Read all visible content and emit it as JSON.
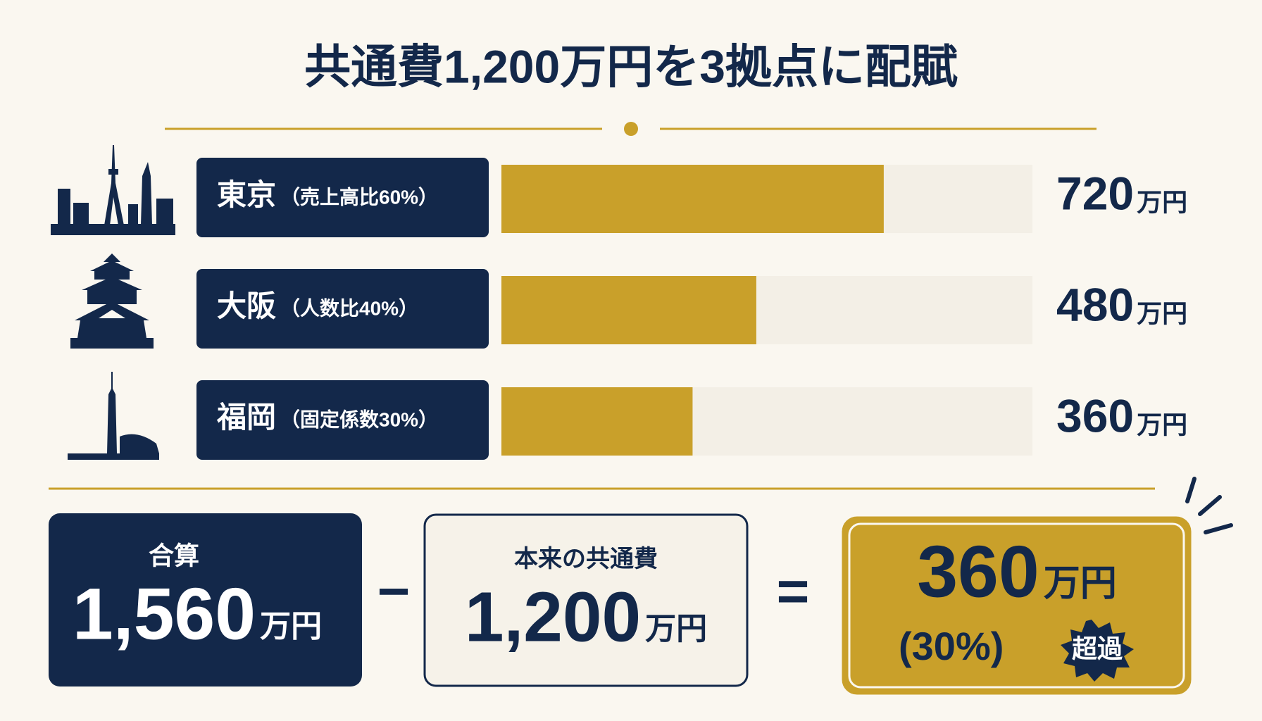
{
  "chart_data": {
    "type": "bar",
    "title": "共通費1,200万円を3拠点に配賦",
    "categories": [
      "東京",
      "大阪",
      "福岡"
    ],
    "category_notes": [
      "（売上高比60%）",
      "（人数比40%）",
      "（固定係数30%）"
    ],
    "values": [
      720,
      480,
      360
    ],
    "unit": "万円",
    "color": "#c9a02a",
    "xlim": [
      0,
      1000
    ]
  },
  "summary": {
    "total": {
      "title": "合算",
      "value": 1560,
      "value_label": "1,560"
    },
    "minus": "−",
    "original": {
      "title": "本来の共通費",
      "value": 1200,
      "value_label": "1,200"
    },
    "equals": "=",
    "excess": {
      "value": 360,
      "percent": 30,
      "percent_label": "(30%)",
      "badge": "超過"
    }
  }
}
